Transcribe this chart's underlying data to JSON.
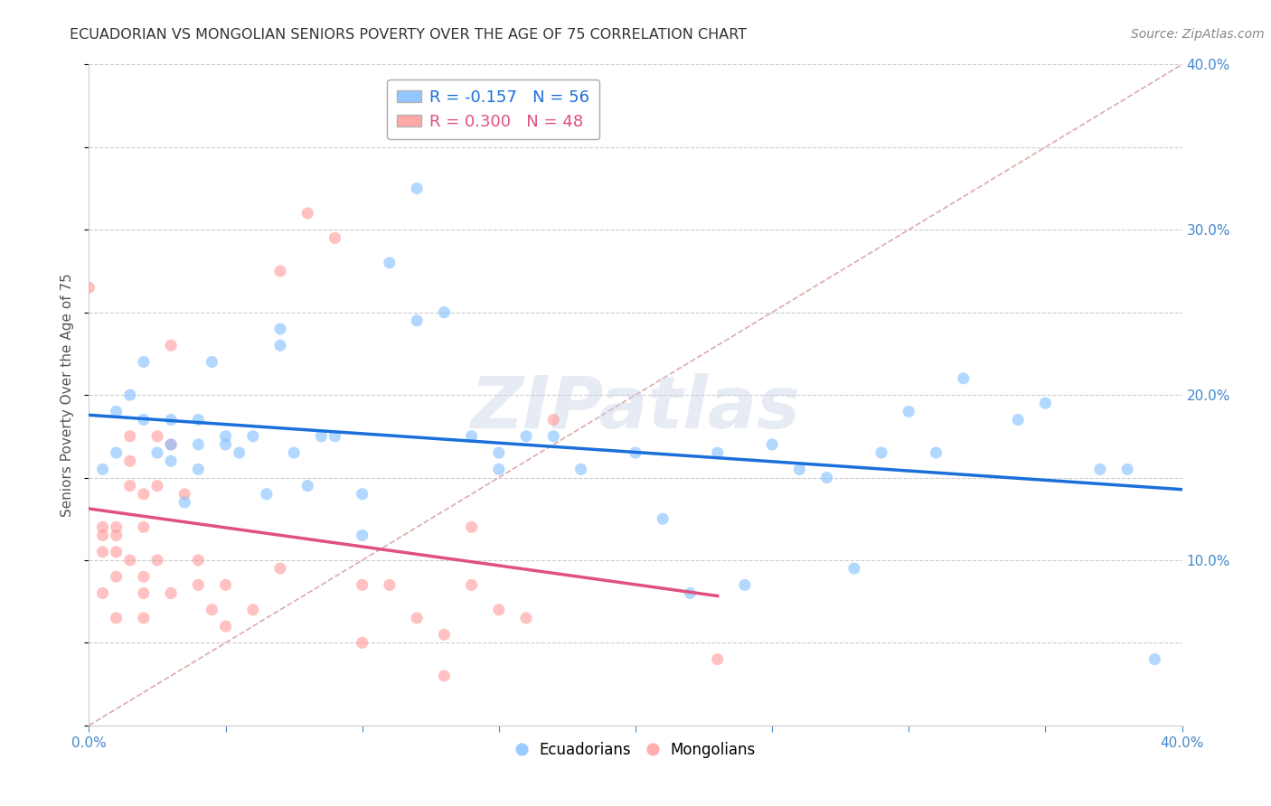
{
  "title": "ECUADORIAN VS MONGOLIAN SENIORS POVERTY OVER THE AGE OF 75 CORRELATION CHART",
  "source": "Source: ZipAtlas.com",
  "ylabel": "Seniors Poverty Over the Age of 75",
  "background_color": "#ffffff",
  "grid_color": "#cccccc",
  "watermark": "ZIPatlas",
  "ecuadorian_color": "#7fbfff",
  "mongolian_color": "#ff9999",
  "trend_ecu_color": "#1a6fdb",
  "trend_mng_color": "#e05080",
  "trend_diag_color": "#ddaaaa",
  "R_ecu": -0.157,
  "N_ecu": 56,
  "R_mng": 0.3,
  "N_mng": 48,
  "xlim": [
    0.0,
    0.4
  ],
  "ylim": [
    0.0,
    0.4
  ],
  "ecuadorian_x": [
    0.005,
    0.01,
    0.01,
    0.015,
    0.02,
    0.02,
    0.025,
    0.03,
    0.03,
    0.03,
    0.035,
    0.04,
    0.04,
    0.04,
    0.045,
    0.05,
    0.05,
    0.055,
    0.06,
    0.065,
    0.07,
    0.07,
    0.075,
    0.08,
    0.085,
    0.09,
    0.1,
    0.1,
    0.11,
    0.12,
    0.12,
    0.13,
    0.14,
    0.15,
    0.15,
    0.16,
    0.17,
    0.18,
    0.2,
    0.21,
    0.22,
    0.23,
    0.24,
    0.25,
    0.26,
    0.27,
    0.28,
    0.29,
    0.3,
    0.31,
    0.32,
    0.34,
    0.35,
    0.37,
    0.38,
    0.39
  ],
  "ecuadorian_y": [
    0.155,
    0.165,
    0.19,
    0.2,
    0.185,
    0.22,
    0.165,
    0.17,
    0.185,
    0.16,
    0.135,
    0.17,
    0.155,
    0.185,
    0.22,
    0.17,
    0.175,
    0.165,
    0.175,
    0.14,
    0.23,
    0.24,
    0.165,
    0.145,
    0.175,
    0.175,
    0.14,
    0.115,
    0.28,
    0.325,
    0.245,
    0.25,
    0.175,
    0.165,
    0.155,
    0.175,
    0.175,
    0.155,
    0.165,
    0.125,
    0.08,
    0.165,
    0.085,
    0.17,
    0.155,
    0.15,
    0.095,
    0.165,
    0.19,
    0.165,
    0.21,
    0.185,
    0.195,
    0.155,
    0.155,
    0.04
  ],
  "mongolian_x": [
    0.0,
    0.005,
    0.005,
    0.005,
    0.005,
    0.01,
    0.01,
    0.01,
    0.01,
    0.01,
    0.015,
    0.015,
    0.015,
    0.015,
    0.02,
    0.02,
    0.02,
    0.02,
    0.02,
    0.025,
    0.025,
    0.025,
    0.03,
    0.03,
    0.03,
    0.035,
    0.04,
    0.04,
    0.045,
    0.05,
    0.05,
    0.06,
    0.07,
    0.07,
    0.08,
    0.09,
    0.1,
    0.1,
    0.11,
    0.12,
    0.13,
    0.13,
    0.14,
    0.14,
    0.15,
    0.16,
    0.17,
    0.23
  ],
  "mongolian_y": [
    0.265,
    0.115,
    0.12,
    0.105,
    0.08,
    0.115,
    0.12,
    0.105,
    0.09,
    0.065,
    0.175,
    0.16,
    0.145,
    0.1,
    0.14,
    0.12,
    0.09,
    0.065,
    0.08,
    0.175,
    0.145,
    0.1,
    0.23,
    0.17,
    0.08,
    0.14,
    0.1,
    0.085,
    0.07,
    0.085,
    0.06,
    0.07,
    0.275,
    0.095,
    0.31,
    0.295,
    0.085,
    0.05,
    0.085,
    0.065,
    0.055,
    0.03,
    0.085,
    0.12,
    0.07,
    0.065,
    0.185,
    0.04
  ]
}
